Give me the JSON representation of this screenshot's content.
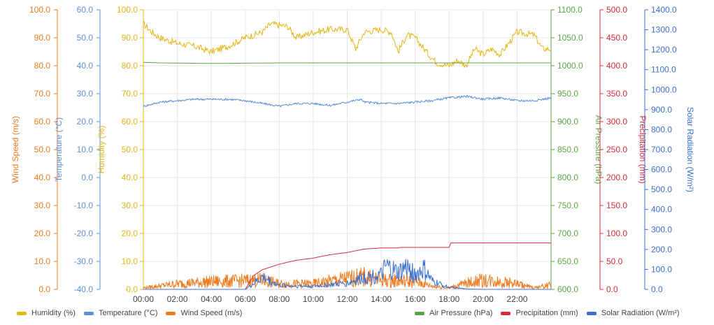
{
  "chart_data": {
    "type": "line",
    "x_ticks": [
      "00:00",
      "02:00",
      "04:00",
      "06:00",
      "08:00",
      "10:00",
      "12:00",
      "14:00",
      "16:00",
      "18:00",
      "20:00",
      "22:00"
    ],
    "grid": true,
    "axes": {
      "wind": {
        "label": "Wind Speed (m/s)",
        "min": 0,
        "max": 100,
        "ticks": [
          "0.0",
          "10.0",
          "20.0",
          "30.0",
          "40.0",
          "50.0",
          "60.0",
          "70.0",
          "80.0",
          "90.0",
          "100.0"
        ],
        "color": "#f07a1e",
        "side": "left"
      },
      "temp": {
        "label": "Temperature (°C)",
        "min": -40,
        "max": 60,
        "ticks": [
          "-40.0",
          "-30.0",
          "-20.0",
          "-10.0",
          "0.0",
          "10.0",
          "20.0",
          "30.0",
          "40.0",
          "50.0",
          "60.0"
        ],
        "color": "#5b8fd8",
        "side": "left"
      },
      "humidity": {
        "label": "Humidity (%)",
        "min": 0,
        "max": 100,
        "ticks": [
          "0.0",
          "10.0",
          "20.0",
          "30.0",
          "40.0",
          "50.0",
          "60.0",
          "70.0",
          "80.0",
          "90.0",
          "100.0"
        ],
        "color": "#e3b612",
        "side": "left"
      },
      "pressure": {
        "label": "Air Pressure (hPa)",
        "min": 600,
        "max": 1100,
        "ticks": [
          "600.0",
          "650.0",
          "700.0",
          "750.0",
          "800.0",
          "850.0",
          "900.0",
          "950.0",
          "1000.0",
          "1050.0",
          "1100.0"
        ],
        "color": "#5aa546",
        "side": "right"
      },
      "precip": {
        "label": "Precipitation (mm)",
        "min": 0,
        "max": 500,
        "ticks": [
          "0.0",
          "50.0",
          "100.0",
          "150.0",
          "200.0",
          "250.0",
          "300.0",
          "350.0",
          "400.0",
          "450.0",
          "500.0"
        ],
        "color": "#d92b3a",
        "side": "right"
      },
      "solar": {
        "label": "Solar Radiation (W/m²)",
        "min": 0,
        "max": 1400,
        "ticks": [
          "0.0",
          "100.0",
          "200.0",
          "300.0",
          "400.0",
          "500.0",
          "600.0",
          "700.0",
          "800.0",
          "900.0",
          "1000.0",
          "1100.0",
          "1200.0",
          "1300.0",
          "1400.0"
        ],
        "color": "#3b6fd0",
        "side": "right"
      }
    },
    "series": [
      {
        "name": "Humidity (%)",
        "axis": "humidity",
        "color": "#e3b612",
        "points": [
          [
            0,
            95
          ],
          [
            0.5,
            92
          ],
          [
            1,
            90
          ],
          [
            2,
            88
          ],
          [
            3,
            87
          ],
          [
            4,
            85
          ],
          [
            5,
            87
          ],
          [
            6,
            90
          ],
          [
            7,
            92
          ],
          [
            7.5,
            95
          ],
          [
            8.5,
            94
          ],
          [
            9,
            90
          ],
          [
            10,
            92
          ],
          [
            11,
            93
          ],
          [
            12,
            93
          ],
          [
            12.5,
            86
          ],
          [
            13,
            92
          ],
          [
            14,
            93
          ],
          [
            14.6,
            92
          ],
          [
            15,
            85
          ],
          [
            15.5,
            91
          ],
          [
            16,
            90
          ],
          [
            16.8,
            84
          ],
          [
            17.3,
            81
          ],
          [
            18,
            80
          ],
          [
            18.5,
            82
          ],
          [
            19,
            80
          ],
          [
            19.5,
            86
          ],
          [
            20,
            84
          ],
          [
            20.5,
            86
          ],
          [
            21,
            84
          ],
          [
            22,
            92
          ],
          [
            23,
            91
          ],
          [
            23.5,
            86
          ],
          [
            24,
            86
          ]
        ]
      },
      {
        "name": "Temperature (°C)",
        "axis": "temp",
        "color": "#5b8fd8",
        "points": [
          [
            0,
            25.5
          ],
          [
            1,
            27
          ],
          [
            2,
            27.5
          ],
          [
            3,
            28
          ],
          [
            4,
            28
          ],
          [
            5,
            28
          ],
          [
            6,
            27.5
          ],
          [
            7,
            26.5
          ],
          [
            8,
            25.5
          ],
          [
            9,
            26.5
          ],
          [
            10,
            26.5
          ],
          [
            11,
            25.8
          ],
          [
            12,
            27
          ],
          [
            12.8,
            28
          ],
          [
            13,
            27
          ],
          [
            14,
            26.5
          ],
          [
            15,
            26.5
          ],
          [
            16,
            27
          ],
          [
            17,
            27.5
          ],
          [
            18,
            28.5
          ],
          [
            19,
            29
          ],
          [
            19.6,
            28.5
          ],
          [
            20,
            28
          ],
          [
            21,
            28.5
          ],
          [
            22,
            27.5
          ],
          [
            23,
            27.5
          ],
          [
            24,
            28.5
          ]
        ]
      },
      {
        "name": "Wind Speed (m/s)",
        "axis": "wind",
        "color": "#f07a1e",
        "points": [
          [
            0,
            0.5
          ],
          [
            2,
            1.8
          ],
          [
            4,
            2.5
          ],
          [
            6,
            2.8
          ],
          [
            7,
            3
          ],
          [
            8,
            1.8
          ],
          [
            10,
            1.8
          ],
          [
            12,
            3.5
          ],
          [
            13,
            4
          ],
          [
            14,
            3
          ],
          [
            16,
            2.5
          ],
          [
            17,
            1
          ],
          [
            18,
            0.5
          ],
          [
            19,
            2
          ],
          [
            20,
            3
          ],
          [
            21,
            2.5
          ],
          [
            22,
            1.8
          ],
          [
            23,
            0.5
          ],
          [
            24,
            1.5
          ]
        ]
      },
      {
        "name": "Air Pressure (hPa)",
        "axis": "pressure",
        "color": "#5aa546",
        "points": [
          [
            0,
            1006
          ],
          [
            1,
            1005
          ],
          [
            4,
            1004
          ],
          [
            8,
            1005
          ],
          [
            12,
            1005
          ],
          [
            16,
            1005
          ],
          [
            20,
            1005
          ],
          [
            24,
            1005
          ]
        ]
      },
      {
        "name": "Precipitation (mm)",
        "axis": "precip",
        "color": "#d92b3a",
        "points": [
          [
            0,
            0
          ],
          [
            6,
            0
          ],
          [
            6.5,
            25
          ],
          [
            7,
            35
          ],
          [
            8,
            45
          ],
          [
            9,
            52
          ],
          [
            10,
            56
          ],
          [
            11,
            62
          ],
          [
            12,
            66
          ],
          [
            13,
            72
          ],
          [
            14,
            74
          ],
          [
            15,
            74
          ],
          [
            15.1,
            75
          ],
          [
            18,
            75
          ],
          [
            18.1,
            83
          ],
          [
            20,
            83
          ],
          [
            24,
            83
          ]
        ]
      },
      {
        "name": "Solar Radiation (W/m²)",
        "axis": "solar",
        "color": "#3b6fd0",
        "points": [
          [
            0,
            0
          ],
          [
            6,
            0
          ],
          [
            7,
            60
          ],
          [
            8,
            20
          ],
          [
            10,
            15
          ],
          [
            12,
            30
          ],
          [
            13,
            60
          ],
          [
            14,
            70
          ],
          [
            14.3,
            110
          ],
          [
            15,
            80
          ],
          [
            15.5,
            110
          ],
          [
            16,
            70
          ],
          [
            16.5,
            100
          ],
          [
            17,
            40
          ],
          [
            18,
            10
          ],
          [
            19,
            2
          ],
          [
            20,
            0
          ],
          [
            24,
            0
          ]
        ]
      }
    ],
    "legend_left": [
      "Humidity (%)",
      "Temperature (°C)",
      "Wind Speed (m/s)"
    ],
    "legend_right": [
      "Air Pressure (hPa)",
      "Precipitation (mm)",
      "Solar Radiation (W/m²)"
    ]
  }
}
